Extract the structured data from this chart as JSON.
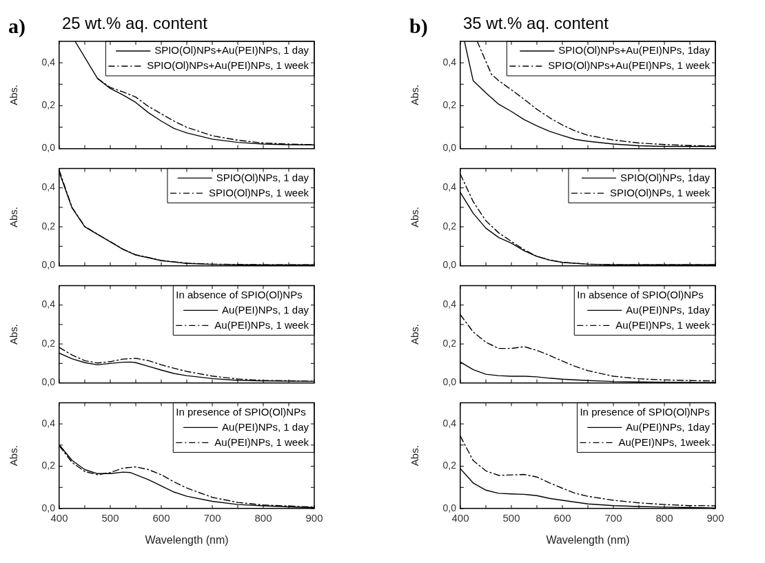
{
  "chart_data": [
    {
      "type": "line",
      "title": "25 wt.% aq. content",
      "annotations": [
        "a)"
      ],
      "ylabel": "Abs.",
      "legend": "top right",
      "marker": "none",
      "grid": false,
      "tick_labels": "y",
      "xlim": [
        400,
        900
      ],
      "ylim": [
        0,
        0.5
      ],
      "xticks": [
        400,
        {
          "value": 450,
          "label": null
        },
        500,
        {
          "value": 550,
          "label": null
        },
        600,
        {
          "value": 650,
          "label": null
        },
        700,
        {
          "value": 750,
          "label": null
        },
        800,
        {
          "value": 850,
          "label": null
        },
        900
      ],
      "yticks": [
        {
          "value": 0,
          "label": "0,0"
        },
        {
          "value": 0.1,
          "label": null
        },
        {
          "value": 0.2,
          "label": "0,2"
        },
        {
          "value": 0.3,
          "label": null
        },
        {
          "value": 0.4,
          "label": "0,4"
        }
      ],
      "series": [
        {
          "name": "SPIO(Ol)NPs+Au(PEI)NPs, 1 day",
          "color": "#000000",
          "line_style": "solid",
          "x": [
            431,
            475,
            500,
            525,
            550,
            575,
            600,
            625,
            650,
            700,
            750,
            800,
            850,
            900
          ],
          "values": [
            0.5,
            0.327,
            0.28,
            0.25,
            0.215,
            0.167,
            0.128,
            0.094,
            0.073,
            0.044,
            0.029,
            0.021,
            0.018,
            0.017
          ]
        },
        {
          "name": "SPIO(Ol)NPs+Au(PEI)NPs, 1 week",
          "color": "#000000",
          "line_style": "dashed",
          "x": [
            475,
            500,
            525,
            550,
            575,
            600,
            625,
            650,
            700,
            750,
            800,
            850,
            900
          ],
          "values": [
            0.327,
            0.285,
            0.264,
            0.24,
            0.196,
            0.162,
            0.128,
            0.099,
            0.06,
            0.039,
            0.026,
            0.021,
            0.018
          ]
        }
      ]
    },
    {
      "type": "line",
      "ylabel": "Abs.",
      "legend": "top right",
      "marker": "none",
      "grid": false,
      "tick_labels": "y",
      "xlim": [
        400,
        900
      ],
      "ylim": [
        0,
        0.5
      ],
      "xticks": [
        400,
        {
          "value": 450,
          "label": null
        },
        500,
        {
          "value": 550,
          "label": null
        },
        600,
        {
          "value": 650,
          "label": null
        },
        700,
        {
          "value": 750,
          "label": null
        },
        800,
        {
          "value": 850,
          "label": null
        },
        900
      ],
      "yticks": [
        {
          "value": 0,
          "label": "0,0"
        },
        {
          "value": 0.1,
          "label": null
        },
        {
          "value": 0.2,
          "label": "0,2"
        },
        {
          "value": 0.3,
          "label": null
        },
        {
          "value": 0.4,
          "label": "0,4"
        }
      ],
      "series": [
        {
          "name": "SPIO(Ol)NPs, 1 day",
          "color": "#000000",
          "line_style": "solid",
          "x": [
            400,
            425,
            450,
            475,
            500,
            525,
            550,
            575,
            600,
            650,
            700,
            800,
            900
          ],
          "values": [
            0.48,
            0.297,
            0.2,
            0.161,
            0.123,
            0.084,
            0.055,
            0.041,
            0.026,
            0.012,
            0.007,
            0.004,
            0.004
          ]
        },
        {
          "name": "SPIO(Ol)NPs, 1 week",
          "color": "#000000",
          "line_style": "dashed",
          "x": [
            400,
            425,
            450,
            475,
            500,
            525,
            550,
            575,
            600,
            650,
            700,
            800,
            900
          ],
          "values": [
            0.49,
            0.3,
            0.202,
            0.162,
            0.124,
            0.085,
            0.056,
            0.042,
            0.027,
            0.013,
            0.008,
            0.005,
            0.005
          ]
        }
      ]
    },
    {
      "type": "line",
      "ylabel": "Abs.",
      "legend": "top right",
      "legend_title": "In absence of SPIO(Ol)NPs",
      "marker": "none",
      "grid": false,
      "tick_labels": "y",
      "xlim": [
        400,
        900
      ],
      "ylim": [
        0,
        0.5
      ],
      "xticks": [
        400,
        {
          "value": 450,
          "label": null
        },
        500,
        {
          "value": 550,
          "label": null
        },
        600,
        {
          "value": 650,
          "label": null
        },
        700,
        {
          "value": 750,
          "label": null
        },
        800,
        {
          "value": 850,
          "label": null
        },
        900
      ],
      "yticks": [
        {
          "value": 0,
          "label": "0,0"
        },
        {
          "value": 0.1,
          "label": null
        },
        {
          "value": 0.2,
          "label": "0,2"
        },
        {
          "value": 0.3,
          "label": null
        },
        {
          "value": 0.4,
          "label": "0,4"
        }
      ],
      "series": [
        {
          "name": "Au(PEI)NPs, 1 day",
          "color": "#000000",
          "line_style": "solid",
          "x": [
            400,
            425,
            450,
            475,
            500,
            525,
            540,
            550,
            575,
            600,
            625,
            650,
            700,
            750,
            800,
            900
          ],
          "values": [
            0.153,
            0.124,
            0.104,
            0.093,
            0.1,
            0.106,
            0.107,
            0.104,
            0.085,
            0.066,
            0.048,
            0.037,
            0.022,
            0.013,
            0.01,
            0.008
          ]
        },
        {
          "name": "Au(PEI)NPs, 1 week",
          "color": "#000000",
          "line_style": "dashed",
          "x": [
            400,
            425,
            450,
            475,
            500,
            525,
            550,
            575,
            600,
            625,
            650,
            700,
            750,
            800,
            900
          ],
          "values": [
            0.182,
            0.143,
            0.114,
            0.102,
            0.109,
            0.122,
            0.126,
            0.114,
            0.093,
            0.075,
            0.059,
            0.035,
            0.02,
            0.013,
            0.008
          ]
        }
      ]
    },
    {
      "type": "line",
      "xlabel": "Wavelength (nm)",
      "ylabel": "Abs.",
      "legend": "top right",
      "legend_title": "In presence of SPIO(Ol)NPs",
      "marker": "none",
      "grid": false,
      "xlim": [
        400,
        900
      ],
      "ylim": [
        0,
        0.5
      ],
      "xticks": [
        400,
        {
          "value": 450,
          "label": null
        },
        500,
        {
          "value": 550,
          "label": null
        },
        600,
        {
          "value": 650,
          "label": null
        },
        700,
        {
          "value": 750,
          "label": null
        },
        800,
        {
          "value": 850,
          "label": null
        },
        900
      ],
      "yticks": [
        {
          "value": 0,
          "label": "0,0"
        },
        {
          "value": 0.1,
          "label": null
        },
        {
          "value": 0.2,
          "label": "0,2"
        },
        {
          "value": 0.3,
          "label": null
        },
        {
          "value": 0.4,
          "label": "0,4"
        }
      ],
      "series": [
        {
          "name": "Au(PEI)NPs, 1 day",
          "color": "#000000",
          "line_style": "solid",
          "x": [
            400,
            425,
            450,
            475,
            500,
            525,
            540,
            550,
            575,
            600,
            625,
            650,
            700,
            750,
            800,
            850,
            900
          ],
          "values": [
            0.301,
            0.228,
            0.184,
            0.165,
            0.165,
            0.172,
            0.17,
            0.16,
            0.136,
            0.107,
            0.078,
            0.058,
            0.034,
            0.019,
            0.013,
            0.008,
            0.005
          ]
        },
        {
          "name": "Au(PEI)NPs, 1 week",
          "color": "#000000",
          "line_style": "dashed",
          "x": [
            400,
            425,
            450,
            475,
            500,
            525,
            550,
            575,
            600,
            625,
            650,
            700,
            750,
            800,
            850,
            900
          ],
          "values": [
            0.296,
            0.218,
            0.175,
            0.16,
            0.17,
            0.191,
            0.197,
            0.184,
            0.16,
            0.126,
            0.097,
            0.053,
            0.029,
            0.017,
            0.012,
            0.007
          ]
        }
      ]
    },
    {
      "type": "line",
      "title": "35 wt.% aq. content",
      "annotations": [
        "b)"
      ],
      "ylabel": "Abs.",
      "legend": "top right",
      "marker": "none",
      "grid": false,
      "tick_labels": "y",
      "xlim": [
        400,
        900
      ],
      "ylim": [
        0,
        0.5
      ],
      "xticks": [
        400,
        {
          "value": 450,
          "label": null
        },
        500,
        {
          "value": 550,
          "label": null
        },
        600,
        {
          "value": 650,
          "label": null
        },
        700,
        {
          "value": 750,
          "label": null
        },
        800,
        {
          "value": 850,
          "label": null
        },
        900
      ],
      "yticks": [
        {
          "value": 0,
          "label": "0,0"
        },
        {
          "value": 0.1,
          "label": null
        },
        {
          "value": 0.2,
          "label": "0,2"
        },
        {
          "value": 0.3,
          "label": null
        },
        {
          "value": 0.4,
          "label": "0,4"
        }
      ],
      "series": [
        {
          "name": "SPIO(Ol)NPs+Au(PEI)NPs, 1day",
          "color": "#000000",
          "line_style": "solid",
          "x": [
            408,
            425,
            450,
            475,
            500,
            525,
            550,
            575,
            600,
            625,
            650,
            700,
            750,
            800,
            900
          ],
          "values": [
            0.5,
            0.317,
            0.26,
            0.207,
            0.173,
            0.135,
            0.106,
            0.08,
            0.061,
            0.043,
            0.034,
            0.021,
            0.013,
            0.01,
            0.01
          ]
        },
        {
          "name": "SPIO(Ol)NPs+Au(PEI)NPs, 1 week",
          "color": "#000000",
          "line_style": "dashed",
          "x": [
            433,
            461,
            475,
            500,
            525,
            550,
            575,
            600,
            625,
            650,
            700,
            750,
            800,
            850,
            900
          ],
          "values": [
            0.5,
            0.346,
            0.317,
            0.274,
            0.23,
            0.183,
            0.144,
            0.11,
            0.082,
            0.062,
            0.04,
            0.026,
            0.019,
            0.014,
            0.012
          ]
        }
      ]
    },
    {
      "type": "line",
      "ylabel": "Abs.",
      "legend": "top right",
      "marker": "none",
      "grid": false,
      "tick_labels": "y",
      "xlim": [
        400,
        900
      ],
      "ylim": [
        0,
        0.5
      ],
      "xticks": [
        400,
        {
          "value": 450,
          "label": null
        },
        500,
        {
          "value": 550,
          "label": null
        },
        600,
        {
          "value": 650,
          "label": null
        },
        700,
        {
          "value": 750,
          "label": null
        },
        800,
        {
          "value": 850,
          "label": null
        },
        900
      ],
      "yticks": [
        {
          "value": 0,
          "label": "0,0"
        },
        {
          "value": 0.1,
          "label": null
        },
        {
          "value": 0.2,
          "label": "0,2"
        },
        {
          "value": 0.3,
          "label": null
        },
        {
          "value": 0.4,
          "label": "0,4"
        }
      ],
      "series": [
        {
          "name": "SPIO(Ol)NPs, 1day",
          "color": "#000000",
          "line_style": "solid",
          "x": [
            400,
            425,
            450,
            475,
            500,
            525,
            550,
            575,
            600,
            650,
            700,
            900
          ],
          "values": [
            0.376,
            0.27,
            0.193,
            0.145,
            0.116,
            0.077,
            0.048,
            0.029,
            0.017,
            0.008,
            0.005,
            0.005
          ]
        },
        {
          "name": "SPIO(Ol)NPs, 1 week",
          "color": "#000000",
          "line_style": "dashed",
          "x": [
            400,
            425,
            450,
            475,
            500,
            525,
            550,
            575,
            600,
            650,
            700,
            900
          ],
          "values": [
            0.47,
            0.33,
            0.231,
            0.169,
            0.125,
            0.082,
            0.048,
            0.029,
            0.017,
            0.008,
            0.005,
            0.005
          ]
        }
      ]
    },
    {
      "type": "line",
      "ylabel": "Abs.",
      "legend": "top right",
      "legend_title": "In absence of SPIO(Ol)NPs",
      "marker": "none",
      "grid": false,
      "tick_labels": "y",
      "xlim": [
        400,
        900
      ],
      "ylim": [
        0,
        0.5
      ],
      "xticks": [
        400,
        {
          "value": 450,
          "label": null
        },
        500,
        {
          "value": 550,
          "label": null
        },
        600,
        {
          "value": 650,
          "label": null
        },
        700,
        {
          "value": 750,
          "label": null
        },
        800,
        {
          "value": 850,
          "label": null
        },
        900
      ],
      "yticks": [
        {
          "value": 0,
          "label": "0,0"
        },
        {
          "value": 0.1,
          "label": null
        },
        {
          "value": 0.2,
          "label": "0,2"
        },
        {
          "value": 0.3,
          "label": null
        },
        {
          "value": 0.4,
          "label": "0,4"
        }
      ],
      "series": [
        {
          "name": "Au(PEI)NPs, 1day",
          "color": "#000000",
          "line_style": "solid",
          "x": [
            400,
            425,
            450,
            475,
            500,
            525,
            550,
            575,
            600,
            650,
            700,
            800,
            900
          ],
          "values": [
            0.107,
            0.068,
            0.044,
            0.037,
            0.034,
            0.034,
            0.031,
            0.024,
            0.019,
            0.012,
            0.007,
            0.003,
            0.002
          ]
        },
        {
          "name": "Au(PEI)NPs, 1 week",
          "color": "#000000",
          "line_style": "dashed",
          "x": [
            400,
            425,
            450,
            475,
            500,
            525,
            550,
            575,
            600,
            625,
            650,
            700,
            750,
            800,
            850,
            900
          ],
          "values": [
            0.35,
            0.262,
            0.209,
            0.177,
            0.177,
            0.186,
            0.167,
            0.141,
            0.112,
            0.085,
            0.063,
            0.034,
            0.021,
            0.015,
            0.012,
            0.01
          ]
        }
      ]
    },
    {
      "type": "line",
      "xlabel": "Wavelength (nm)",
      "ylabel": "Abs.",
      "legend": "top right",
      "legend_title": "In presence of SPIO(Ol)NPs",
      "marker": "none",
      "grid": false,
      "xlim": [
        400,
        900
      ],
      "ylim": [
        0,
        0.5
      ],
      "xticks": [
        400,
        {
          "value": 450,
          "label": null
        },
        500,
        {
          "value": 550,
          "label": null
        },
        600,
        {
          "value": 650,
          "label": null
        },
        700,
        {
          "value": 750,
          "label": null
        },
        800,
        {
          "value": 850,
          "label": null
        },
        900
      ],
      "yticks": [
        {
          "value": 0,
          "label": "0,0"
        },
        {
          "value": 0.1,
          "label": null
        },
        {
          "value": 0.2,
          "label": "0,2"
        },
        {
          "value": 0.3,
          "label": null
        },
        {
          "value": 0.4,
          "label": "0,4"
        }
      ],
      "series": [
        {
          "name": "Au(PEI)NPs, 1day",
          "color": "#000000",
          "line_style": "solid",
          "x": [
            400,
            425,
            450,
            475,
            500,
            525,
            550,
            575,
            600,
            650,
            700,
            750,
            800,
            900
          ],
          "values": [
            0.188,
            0.121,
            0.087,
            0.072,
            0.069,
            0.067,
            0.061,
            0.048,
            0.039,
            0.022,
            0.014,
            0.01,
            0.007,
            0.003
          ]
        },
        {
          "name": "Au(PEI)NPs, 1week",
          "color": "#000000",
          "line_style": "dashed",
          "x": [
            400,
            425,
            450,
            475,
            500,
            525,
            550,
            575,
            600,
            625,
            650,
            700,
            750,
            800,
            850,
            900
          ],
          "values": [
            0.342,
            0.227,
            0.178,
            0.157,
            0.159,
            0.161,
            0.149,
            0.121,
            0.096,
            0.072,
            0.058,
            0.039,
            0.027,
            0.019,
            0.014,
            0.013
          ]
        }
      ]
    }
  ]
}
